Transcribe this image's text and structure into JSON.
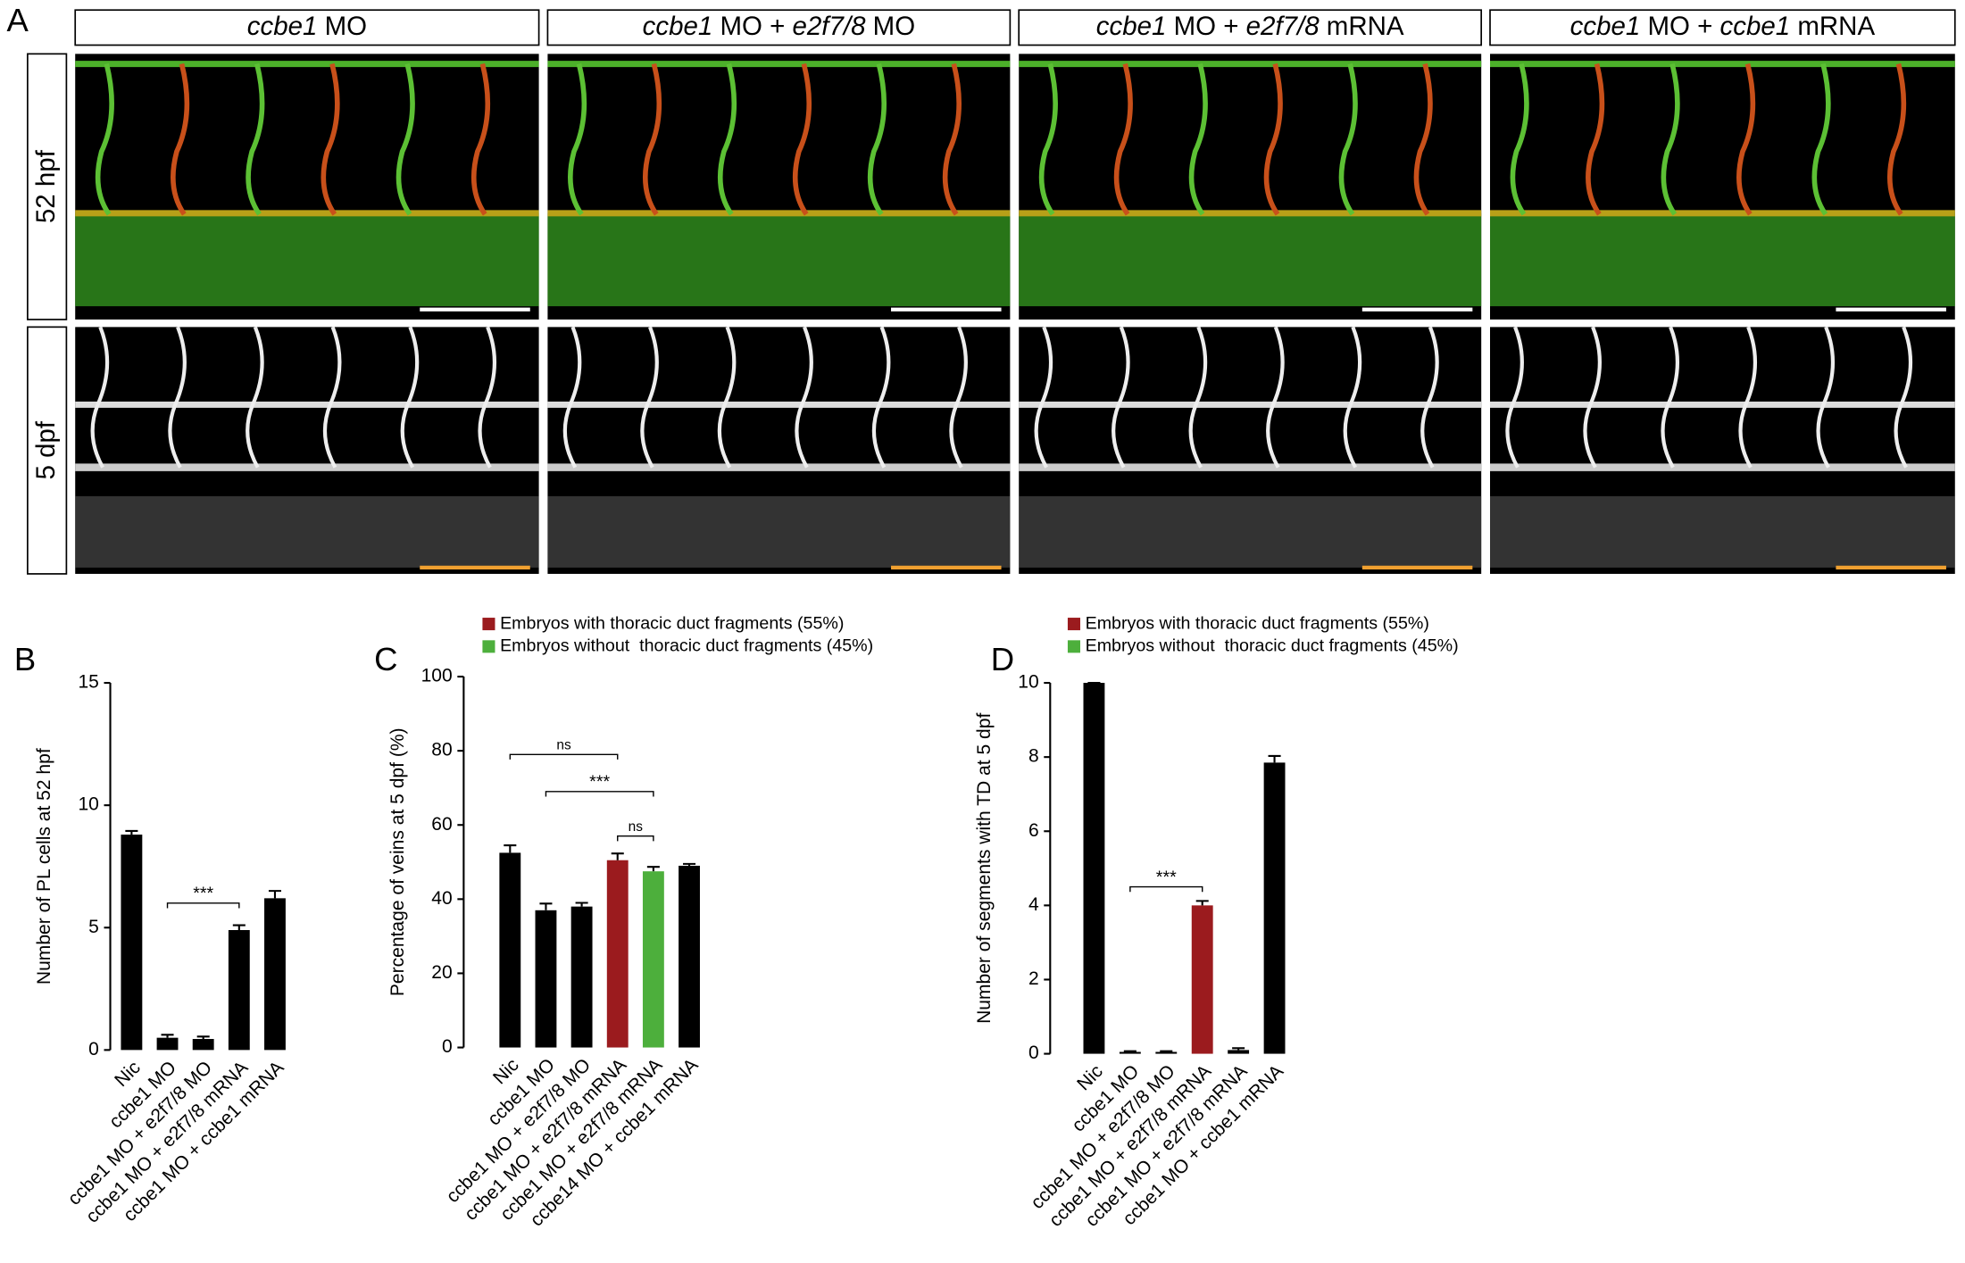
{
  "panel_labels": [
    "A",
    "B",
    "C",
    "D"
  ],
  "panel_a": {
    "column_headers": [
      [
        {
          "text": "ccbe1",
          "italic": true
        },
        {
          "text": " MO",
          "italic": false
        }
      ],
      [
        {
          "text": "ccbe1",
          "italic": true
        },
        {
          "text": " MO + ",
          "italic": false
        },
        {
          "text": "e2f7/8",
          "italic": true
        },
        {
          "text": " MO",
          "italic": false
        }
      ],
      [
        {
          "text": "ccbe1",
          "italic": true
        },
        {
          "text": " MO + ",
          "italic": false
        },
        {
          "text": "e2f7/8",
          "italic": true
        },
        {
          "text": " mRNA",
          "italic": false
        }
      ],
      [
        {
          "text": "ccbe1",
          "italic": true
        },
        {
          "text": " MO + ",
          "italic": false
        },
        {
          "text": "ccbe1",
          "italic": true
        },
        {
          "text": " mRNA",
          "italic": false
        }
      ]
    ],
    "row_labels": [
      "52 hpf",
      "5 dpf"
    ]
  },
  "chart_data": [
    {
      "type": "bar",
      "y_label": "Number of PL cells at 52 hpf",
      "categories": [
        "Nic",
        "ccbe1 MO",
        "ccbe1 MO + e2f7/8 MO",
        "ccbe1 MO + e2f7/8 mRNA",
        "ccbe1 MO + ccbe1 mRNA"
      ],
      "values": [
        8.8,
        0.5,
        0.45,
        4.9,
        6.2
      ],
      "errors": [
        0.15,
        0.12,
        0.1,
        0.2,
        0.3
      ],
      "colors": [
        "#000000",
        "#000000",
        "#000000",
        "#000000",
        "#000000"
      ],
      "ylim": [
        0,
        15
      ],
      "yticks": [
        0,
        5,
        10,
        15
      ],
      "annotations": [
        {
          "text": "***",
          "from": 1,
          "to": 3,
          "y": 6.0
        }
      ]
    },
    {
      "type": "bar",
      "y_label": "Percentage of veins at 5 dpf (%)",
      "legend": [
        {
          "label": "Embryos with thoracic duct fragments (55%)",
          "color": "#9b1b1e"
        },
        {
          "label": "Embryos without  thoracic duct fragments (45%)",
          "color": "#4daf3c"
        }
      ],
      "categories": [
        "Nic",
        "ccbe1 MO",
        "ccbe1 MO + e2f7/8 MO",
        "ccbe1 MO + e2f7/8 mRNA",
        "ccbe1 MO + e2f7/8 mRNA",
        "ccbe14 MO + ccbe1 mRNA"
      ],
      "values": [
        52.5,
        37,
        38,
        50.5,
        47.5,
        49
      ],
      "errors": [
        2,
        1.8,
        1,
        1.8,
        1.2,
        0.5
      ],
      "colors": [
        "#000000",
        "#000000",
        "#000000",
        "#9b1b1e",
        "#4daf3c",
        "#000000"
      ],
      "ylim": [
        0,
        100
      ],
      "yticks": [
        0,
        20,
        40,
        60,
        80,
        100
      ],
      "annotations": [
        {
          "text": "ns",
          "from": 0,
          "to": 3,
          "y": 79
        },
        {
          "text": "***",
          "from": 1,
          "to": 4,
          "y": 69
        },
        {
          "text": "ns",
          "from": 3,
          "to": 4,
          "y": 57
        }
      ]
    },
    {
      "type": "bar",
      "y_label": "Number of segments with TD at 5 dpf",
      "legend": [
        {
          "label": "Embryos with thoracic duct fragments (55%)",
          "color": "#9b1b1e"
        },
        {
          "label": "Embryos without  thoracic duct fragments (45%)",
          "color": "#4daf3c"
        }
      ],
      "categories": [
        "Nic",
        "ccbe1 MO",
        "ccbe1 MO + e2f7/8 MO",
        "ccbe1 MO + e2f7/8 mRNA",
        "ccbe1 MO + e2f7/8 mRNA",
        "ccbe1 MO + ccbe1 mRNA"
      ],
      "values": [
        10,
        0.05,
        0.05,
        4.0,
        0.1,
        7.85
      ],
      "errors": [
        0,
        0.02,
        0.02,
        0.12,
        0.05,
        0.18
      ],
      "colors": [
        "#000000",
        "#000000",
        "#000000",
        "#9b1b1e",
        "#000000",
        "#000000"
      ],
      "ylim": [
        0,
        10
      ],
      "yticks": [
        0,
        2,
        4,
        6,
        8,
        10
      ],
      "annotations": [
        {
          "text": "***",
          "from": 1,
          "to": 3,
          "y": 4.5
        }
      ]
    }
  ]
}
